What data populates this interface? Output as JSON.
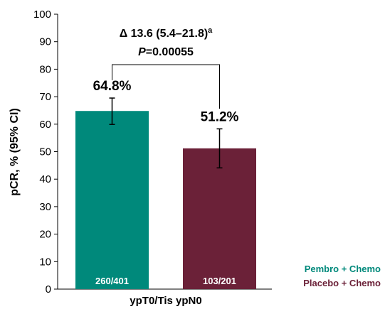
{
  "chart_data": {
    "type": "bar",
    "ylabel": "pCR, % (95% CI)",
    "ylim": [
      0,
      100
    ],
    "yticks": [
      "0",
      "10",
      "20",
      "30",
      "40",
      "50",
      "60",
      "70",
      "80",
      "90",
      "100"
    ],
    "category_label": "ypT0/Tis ypN0",
    "series": [
      {
        "name": "Pembro + Chemo",
        "value": 64.8,
        "ci": [
          59.9,
          69.5
        ],
        "value_label": "64.8%",
        "count_label": "260/401",
        "color": "#00897b"
      },
      {
        "name": "Placebo + Chemo",
        "value": 51.2,
        "ci": [
          44.1,
          58.3
        ],
        "value_label": "51.2%",
        "count_label": "103/201",
        "color": "#6b2138"
      }
    ],
    "annotation": {
      "delta_prefix": "Δ 13.6 (5.4–21.8)",
      "delta_superscript": "a",
      "p_prefix": "P",
      "p_value": "=0.00055"
    },
    "legend_position": "bottom-right",
    "grid": false
  }
}
